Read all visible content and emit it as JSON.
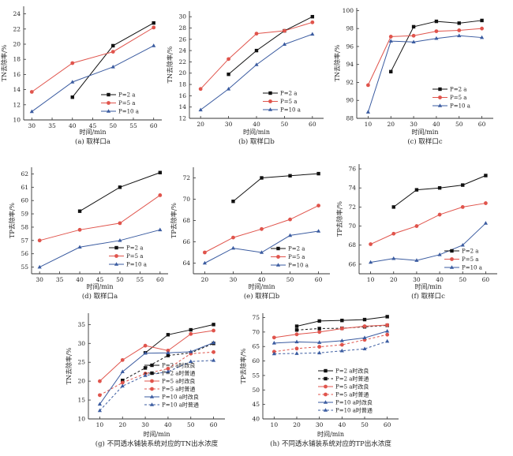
{
  "figure": {
    "xlabel_common": "时间/min"
  },
  "chart_data": [
    {
      "id": "a",
      "type": "line",
      "caption": "(a) 取样口a",
      "xlabel": "时间/min",
      "ylabel": "TN去除率/%",
      "xlim": [
        28,
        62
      ],
      "ylim": [
        10,
        25
      ],
      "xticks": [
        30,
        35,
        40,
        45,
        50,
        55,
        60
      ],
      "yticks": [
        10,
        12,
        14,
        16,
        18,
        20,
        22,
        24
      ],
      "legend_position": "bottom-right",
      "series": [
        {
          "name": "P=2 a",
          "color": "#111111",
          "marker": "square",
          "dash": false,
          "x": [
            40,
            50,
            60
          ],
          "y": [
            13.0,
            19.8,
            22.8
          ]
        },
        {
          "name": "P=5 a",
          "color": "#e0544c",
          "marker": "circle",
          "dash": false,
          "x": [
            30,
            40,
            50,
            60
          ],
          "y": [
            13.7,
            17.5,
            19.0,
            22.2
          ]
        },
        {
          "name": "P=10 a",
          "color": "#3a5ba0",
          "marker": "triangle",
          "dash": false,
          "x": [
            30,
            40,
            50,
            60
          ],
          "y": [
            11.1,
            15.0,
            17.0,
            19.8
          ]
        }
      ]
    },
    {
      "id": "b",
      "type": "line",
      "caption": "(b) 取样口b",
      "xlabel": "时间/min",
      "ylabel": "TN去除率/%",
      "xlim": [
        16,
        64
      ],
      "ylim": [
        12,
        31
      ],
      "xticks": [
        20,
        30,
        40,
        50,
        60
      ],
      "yticks": [
        12,
        14,
        16,
        18,
        20,
        22,
        24,
        26,
        28,
        30
      ],
      "legend_position": "bottom-right",
      "series": [
        {
          "name": "P=2 a",
          "color": "#111111",
          "marker": "square",
          "dash": false,
          "x": [
            30,
            40,
            50,
            60
          ],
          "y": [
            19.8,
            24.0,
            27.5,
            30.0
          ]
        },
        {
          "name": "P=5 a",
          "color": "#e0544c",
          "marker": "circle",
          "dash": false,
          "x": [
            20,
            30,
            40,
            50,
            60
          ],
          "y": [
            17.2,
            22.5,
            27.0,
            27.5,
            29.0
          ]
        },
        {
          "name": "P=10 a",
          "color": "#3a5ba0",
          "marker": "triangle",
          "dash": false,
          "x": [
            20,
            30,
            40,
            50,
            60
          ],
          "y": [
            13.5,
            17.2,
            21.5,
            25.1,
            26.9
          ]
        }
      ]
    },
    {
      "id": "c",
      "type": "line",
      "caption": "(c) 取样口c",
      "xlabel": "时间/min",
      "ylabel": "TN去除率/%",
      "xlim": [
        5,
        65
      ],
      "ylim": [
        88,
        100.3
      ],
      "xticks": [
        10,
        20,
        30,
        40,
        50,
        60
      ],
      "yticks": [
        88,
        90,
        92,
        94,
        96,
        98,
        100
      ],
      "legend_position": "bottom-right",
      "series": [
        {
          "name": "P=2 a",
          "color": "#111111",
          "marker": "square",
          "dash": false,
          "x": [
            20,
            30,
            40,
            50,
            60
          ],
          "y": [
            93.2,
            98.2,
            98.8,
            98.6,
            98.9
          ]
        },
        {
          "name": "P=5 a",
          "color": "#e0544c",
          "marker": "circle",
          "dash": false,
          "x": [
            10,
            20,
            30,
            40,
            50,
            60
          ],
          "y": [
            91.7,
            97.1,
            97.2,
            97.7,
            97.8,
            98.0
          ]
        },
        {
          "name": "P=10 a",
          "color": "#3a5ba0",
          "marker": "triangle",
          "dash": false,
          "x": [
            10,
            20,
            30,
            40,
            50,
            60
          ],
          "y": [
            88.7,
            96.6,
            96.5,
            96.9,
            97.2,
            97.0
          ]
        }
      ]
    },
    {
      "id": "d",
      "type": "line",
      "caption": "(d) 取样口a",
      "xlabel": "时间/min",
      "ylabel": "TP去除率/%",
      "xlim": [
        28,
        62
      ],
      "ylim": [
        54.5,
        62.5
      ],
      "xticks": [
        30,
        35,
        40,
        45,
        50,
        55,
        60
      ],
      "yticks": [
        55,
        56,
        57,
        58,
        59,
        60,
        61,
        62
      ],
      "legend_position": "bottom-right",
      "series": [
        {
          "name": "P=2 a",
          "color": "#111111",
          "marker": "square",
          "dash": false,
          "x": [
            40,
            50,
            60
          ],
          "y": [
            59.2,
            61.0,
            62.1
          ]
        },
        {
          "name": "P=5 a",
          "color": "#e0544c",
          "marker": "circle",
          "dash": false,
          "x": [
            30,
            40,
            50,
            60
          ],
          "y": [
            57.0,
            57.8,
            58.3,
            60.4
          ]
        },
        {
          "name": "P=10 a",
          "color": "#3a5ba0",
          "marker": "triangle",
          "dash": false,
          "x": [
            30,
            40,
            50,
            60
          ],
          "y": [
            55.0,
            56.5,
            57.0,
            57.8
          ]
        }
      ]
    },
    {
      "id": "e",
      "type": "line",
      "caption": "(e) 取样口b",
      "xlabel": "时间/min",
      "ylabel": "TP去除率/%",
      "xlim": [
        16,
        64
      ],
      "ylim": [
        63,
        73
      ],
      "xticks": [
        20,
        30,
        40,
        50,
        60
      ],
      "yticks": [
        64,
        66,
        68,
        70,
        72
      ],
      "legend_position": "bottom-right",
      "series": [
        {
          "name": "P=2 a",
          "color": "#111111",
          "marker": "square",
          "dash": false,
          "x": [
            30,
            40,
            50,
            60
          ],
          "y": [
            69.8,
            72.0,
            72.2,
            72.4
          ]
        },
        {
          "name": "P=5 a",
          "color": "#e0544c",
          "marker": "circle",
          "dash": false,
          "x": [
            20,
            30,
            40,
            50,
            60
          ],
          "y": [
            65.0,
            66.4,
            67.2,
            68.1,
            69.4
          ]
        },
        {
          "name": "P=10 a",
          "color": "#3a5ba0",
          "marker": "triangle",
          "dash": false,
          "x": [
            20,
            30,
            40,
            50,
            60
          ],
          "y": [
            64.0,
            65.4,
            65.0,
            66.6,
            67.0
          ]
        }
      ]
    },
    {
      "id": "f",
      "type": "line",
      "caption": "(f) 取样口c",
      "xlabel": "时间/min",
      "ylabel": "TP去除率/%",
      "xlim": [
        5,
        65
      ],
      "ylim": [
        65,
        76.5
      ],
      "xticks": [
        10,
        20,
        30,
        40,
        50,
        60
      ],
      "yticks": [
        66,
        68,
        70,
        72,
        74,
        76
      ],
      "legend_position": "bottom-right",
      "series": [
        {
          "name": "P=2 a",
          "color": "#111111",
          "marker": "square",
          "dash": false,
          "x": [
            20,
            30,
            40,
            50,
            60
          ],
          "y": [
            72.0,
            73.8,
            74.0,
            74.3,
            75.3
          ]
        },
        {
          "name": "P=5 a",
          "color": "#e0544c",
          "marker": "circle",
          "dash": false,
          "x": [
            10,
            20,
            30,
            40,
            50,
            60
          ],
          "y": [
            68.1,
            69.2,
            70.0,
            71.2,
            72.0,
            72.4
          ]
        },
        {
          "name": "P=10 a",
          "color": "#3a5ba0",
          "marker": "triangle",
          "dash": false,
          "x": [
            10,
            20,
            30,
            40,
            50,
            60
          ],
          "y": [
            66.2,
            66.6,
            66.4,
            67.0,
            68.0,
            70.3
          ]
        }
      ]
    },
    {
      "id": "g",
      "type": "line",
      "caption": "(g) 不同透水铺装系统对应的TN出水浓度",
      "xlabel": "时间/min",
      "ylabel": "TN去除率/%",
      "xlim": [
        5,
        65
      ],
      "ylim": [
        10,
        38
      ],
      "xticks": [
        10,
        20,
        30,
        40,
        50,
        60
      ],
      "yticks": [
        10,
        15,
        20,
        25,
        30,
        35
      ],
      "legend_position": "bottom-right",
      "series": [
        {
          "name": "P=2 a时改良",
          "color": "#111111",
          "marker": "square",
          "dash": false,
          "x": [
            30,
            40,
            50,
            60
          ],
          "y": [
            27.5,
            32.3,
            33.6,
            35.0
          ]
        },
        {
          "name": "P=2 a时普通",
          "color": "#111111",
          "marker": "square",
          "dash": true,
          "x": [
            20,
            30,
            40,
            50,
            60
          ],
          "y": [
            20.2,
            23.5,
            26.8,
            27.5,
            30.0
          ]
        },
        {
          "name": "P=5 a时改良",
          "color": "#e0544c",
          "marker": "circle",
          "dash": false,
          "x": [
            10,
            20,
            30,
            40,
            50,
            60
          ],
          "y": [
            20.0,
            25.6,
            29.4,
            28.1,
            32.5,
            33.4
          ]
        },
        {
          "name": "P=5 a时普通",
          "color": "#e0544c",
          "marker": "circle",
          "dash": true,
          "x": [
            10,
            20,
            30,
            40,
            50,
            60
          ],
          "y": [
            16.3,
            19.6,
            22.0,
            23.3,
            27.3,
            27.7
          ]
        },
        {
          "name": "P=10 a时改良",
          "color": "#3a5ba0",
          "marker": "triangle",
          "dash": false,
          "x": [
            10,
            20,
            30,
            40,
            50,
            60
          ],
          "y": [
            13.9,
            22.5,
            27.4,
            27.5,
            27.8,
            30.2
          ]
        },
        {
          "name": "P=10 a时普通",
          "color": "#3a5ba0",
          "marker": "triangle",
          "dash": true,
          "x": [
            10,
            20,
            30,
            40,
            50,
            60
          ],
          "y": [
            12.2,
            18.7,
            21.5,
            22.5,
            25.2,
            25.5
          ]
        }
      ]
    },
    {
      "id": "h",
      "type": "line",
      "caption": "(h) 不同透水铺装系统对应的TP出水浓度",
      "xlabel": "时间/min",
      "ylabel": "TP去除率/%",
      "xlim": [
        5,
        65
      ],
      "ylim": [
        40,
        76.5
      ],
      "xticks": [
        10,
        20,
        30,
        40,
        50,
        60
      ],
      "yticks": [
        40,
        45,
        50,
        55,
        60,
        65,
        70,
        75
      ],
      "legend_position": "bottom-right",
      "series": [
        {
          "name": "P=2 a时改良",
          "color": "#111111",
          "marker": "square",
          "dash": false,
          "x": [
            20,
            30,
            40,
            50,
            60
          ],
          "y": [
            72.0,
            73.8,
            74.0,
            74.3,
            75.3
          ]
        },
        {
          "name": "P=2 a时普通",
          "color": "#111111",
          "marker": "square",
          "dash": true,
          "x": [
            20,
            30,
            40,
            50,
            60
          ],
          "y": [
            70.7,
            71.2,
            71.3,
            71.8,
            72.3
          ]
        },
        {
          "name": "P=5 a时改良",
          "color": "#e0544c",
          "marker": "circle",
          "dash": false,
          "x": [
            10,
            20,
            30,
            40,
            50,
            60
          ],
          "y": [
            68.1,
            69.2,
            70.0,
            71.2,
            72.0,
            72.4
          ]
        },
        {
          "name": "P=5 a时普通",
          "color": "#e0544c",
          "marker": "circle",
          "dash": true,
          "x": [
            10,
            20,
            30,
            40,
            50,
            60
          ],
          "y": [
            63.2,
            64.3,
            64.9,
            65.6,
            67.3,
            69.1
          ]
        },
        {
          "name": "P=10 a时改良",
          "color": "#3a5ba0",
          "marker": "triangle",
          "dash": false,
          "x": [
            10,
            20,
            30,
            40,
            50,
            60
          ],
          "y": [
            66.2,
            66.6,
            66.4,
            67.0,
            68.0,
            70.3
          ]
        },
        {
          "name": "P=10 a时普通",
          "color": "#3a5ba0",
          "marker": "triangle",
          "dash": true,
          "x": [
            10,
            20,
            30,
            40,
            50,
            60
          ],
          "y": [
            62.5,
            62.6,
            62.8,
            63.5,
            64.2,
            66.8
          ]
        }
      ]
    }
  ]
}
